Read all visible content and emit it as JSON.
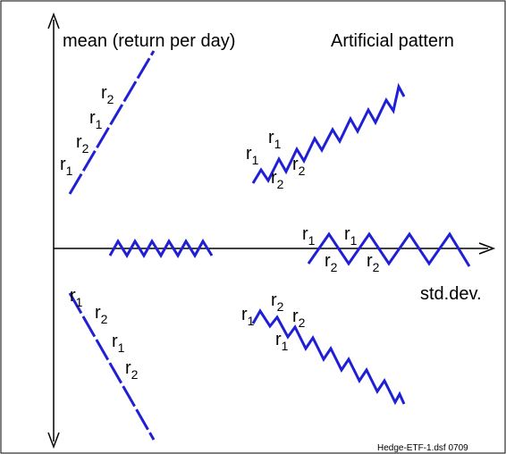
{
  "axis_labels": {
    "y": "mean (return per day)",
    "x": "std.dev."
  },
  "title": "Artificial pattern",
  "footer": "Hedge-ETF-1.dsf 0709",
  "labels": [
    {
      "base": "r",
      "sub": "1"
    },
    {
      "base": "r",
      "sub": "2"
    },
    {
      "base": "r",
      "sub": "1"
    },
    {
      "base": "r",
      "sub": "2"
    },
    {
      "base": "r",
      "sub": "1"
    },
    {
      "base": "r",
      "sub": "1"
    },
    {
      "base": "r",
      "sub": "2"
    },
    {
      "base": "r",
      "sub": "2"
    },
    {
      "base": "r",
      "sub": "1"
    },
    {
      "base": "r",
      "sub": "1"
    },
    {
      "base": "r",
      "sub": "2"
    },
    {
      "base": "r",
      "sub": "2"
    },
    {
      "base": "r",
      "sub": "1"
    },
    {
      "base": "r",
      "sub": "2"
    },
    {
      "base": "r",
      "sub": "1"
    },
    {
      "base": "r",
      "sub": "2"
    },
    {
      "base": "r",
      "sub": "1"
    },
    {
      "base": "r",
      "sub": "2"
    },
    {
      "base": "r",
      "sub": "2"
    },
    {
      "base": "r",
      "sub": "1"
    }
  ]
}
